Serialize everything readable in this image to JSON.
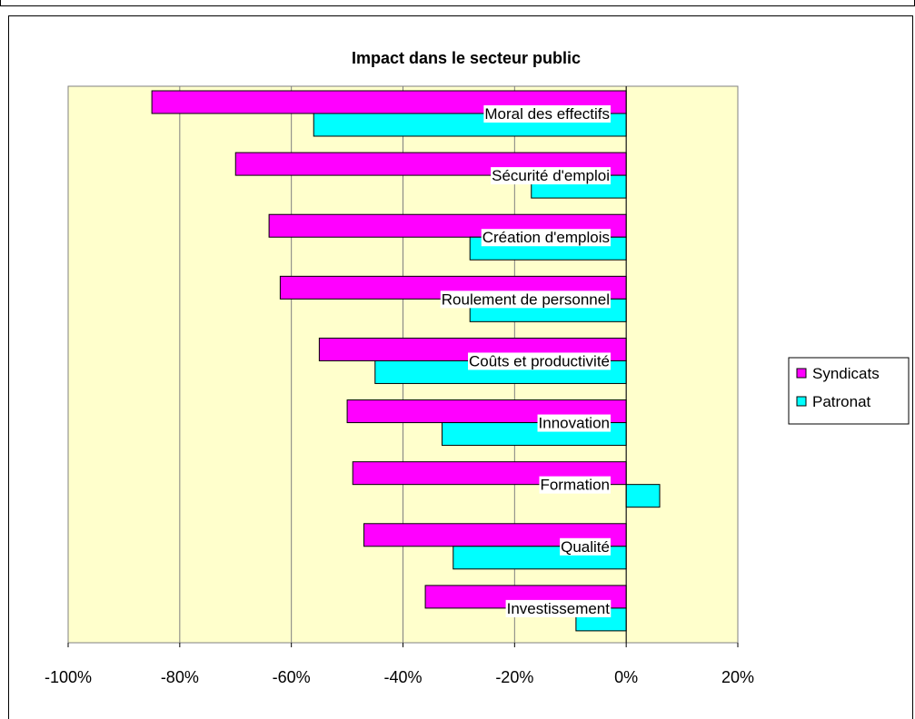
{
  "chart_data": {
    "type": "bar",
    "orientation": "horizontal",
    "title": "Impact dans le secteur public",
    "categories": [
      "Moral des effectifs",
      "Sécurité d'emploi",
      "Création d'emplois",
      "Roulement de personnel",
      "Coûts et productivité",
      "Innovation",
      "Formation",
      "Qualité",
      "Investissement"
    ],
    "series": [
      {
        "name": "Syndicats",
        "color": "#ff00ff",
        "values": [
          -85,
          -70,
          -64,
          -62,
          -55,
          -50,
          -49,
          -47,
          -36
        ]
      },
      {
        "name": "Patronat",
        "color": "#00ffff",
        "values": [
          -56,
          -17,
          -28,
          -28,
          -45,
          -33,
          6,
          -31,
          -9
        ]
      }
    ],
    "xlim": [
      -100,
      20
    ],
    "xticks": [
      "-100%",
      "-80%",
      "-60%",
      "-40%",
      "-20%",
      "0%",
      "20%"
    ],
    "xtick_values": [
      -100,
      -80,
      -60,
      -40,
      -20,
      0,
      20
    ],
    "grid": true,
    "legend": "right",
    "plot_background": "#ffffcc"
  }
}
